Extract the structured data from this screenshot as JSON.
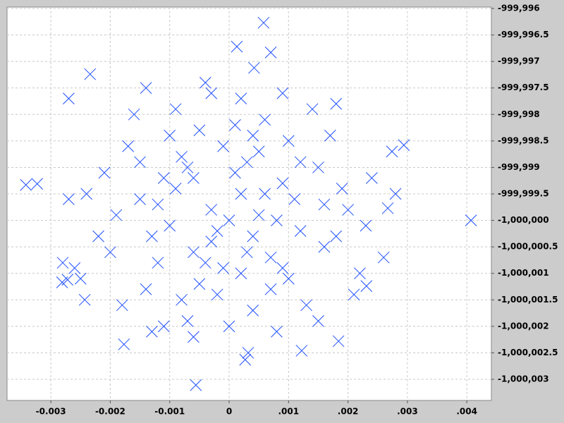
{
  "chart_data": {
    "type": "scatter",
    "color": "#1f4fff",
    "grid": true,
    "marker": "x",
    "xlim": [
      -0.003737,
      0.004413
    ],
    "ylim": [
      -1000003.399,
      -999995.973
    ],
    "xticks": [
      -0.003,
      -0.002,
      -0.001,
      0,
      {
        "value": 0.001,
        "label": ".001"
      },
      {
        "value": 0.002,
        "label": ".002"
      },
      {
        "value": 0.003,
        "label": ".003"
      },
      {
        "value": 0.004,
        "label": ".004"
      }
    ],
    "yticks": [
      {
        "value": -999996,
        "label": "-999,996"
      },
      {
        "value": -999996.5,
        "label": "-999,996.5"
      },
      {
        "value": -999997,
        "label": "-999,997"
      },
      {
        "value": -999997.5,
        "label": "-999,997.5"
      },
      {
        "value": -999998,
        "label": "-999,998"
      },
      {
        "value": -999998.5,
        "label": "-999,998.5"
      },
      {
        "value": -999999,
        "label": "-999,999"
      },
      {
        "value": -999999.5,
        "label": "-999,999.5"
      },
      {
        "value": -1000000,
        "label": "-1,000,000"
      },
      {
        "value": -1000000.5,
        "label": "-1,000,000.5"
      },
      {
        "value": -1000001,
        "label": "-1,000,001"
      },
      {
        "value": -1000001.5,
        "label": "-1,000,001.5"
      },
      {
        "value": -1000002,
        "label": "-1,000,002"
      },
      {
        "value": -1000002.5,
        "label": "-1,000,002.5"
      },
      {
        "value": -1000003,
        "label": "-1,000,003"
      }
    ],
    "x": [
      0.00058,
      0.00013,
      0.0007,
      0.00042,
      -0.00234,
      -0.0027,
      -0.00342,
      -0.00323,
      0.00407,
      -0.00056,
      0.00274,
      0.00294,
      0.00122,
      0.00184,
      0.00027,
      0.00032,
      -0.00177,
      0.00267,
      0.00231,
      -0.00281,
      -0.00272,
      -0.00243,
      -0.0006,
      0.0002,
      -0.001,
      0.0005,
      -0.0003,
      0.0009,
      -0.0015,
      0.0012,
      -0.0008,
      0.0003,
      -0.0001,
      0.0007,
      -0.0012,
      0.0015,
      -0.0019,
      0.0018,
      -0.0005,
      0.0001,
      -0.0002,
      0.001,
      -0.0014,
      0.002,
      -0.0022,
      0.0006,
      -0.0009,
      0.0004,
      -0.0007,
      0.0013,
      -0.0017,
      0.0017,
      -0.0004,
      0.0002,
      -0.0024,
      0.0024,
      -0.0011,
      0.0008,
      -0.0026,
      0.0022,
      -0.0016,
      0.0014,
      0,
      -0.0003,
      0.0004,
      -0.0006,
      0.0006,
      -0.0009,
      0.0011,
      -0.0013,
      0.0001,
      -0.0002,
      0.0003,
      -0.0007,
      0.0008,
      -0.0011,
      0.0016,
      -0.002,
      0.0019,
      -0.0001,
      0.0005,
      -0.0005,
      0.0007,
      -0.0018,
      0.0021,
      -0.0027,
      0.0026,
      -0.0008,
      0.001,
      -0.0015,
      0.0012,
      -0.0004,
      0.0002,
      -0.0012,
      0.0009,
      -0.0021,
      0.0016,
      -0.001,
      0.0004,
      -0.0006,
      0,
      -0.0025,
      0.0023,
      -0.0013,
      0.0015,
      -0.0003,
      0.0009,
      -0.0014,
      0.0018,
      -0.0028,
      0.0028
    ],
    "values": [
      -999996.27,
      -999996.72,
      -999996.83,
      -999997.12,
      -999997.24,
      -999997.7,
      -999999.33,
      -999999.31,
      -1000000,
      -1000003.11,
      -999998.7,
      -999998.58,
      -1000002.46,
      -1000002.28,
      -1000002.63,
      -1000002.5,
      -1000002.34,
      -999999.77,
      -1000001.24,
      -1000001.17,
      -1000001.12,
      -1000001.5,
      -999999.2,
      -999999.5,
      -1000000.1,
      -999999.9,
      -1000000.4,
      -999999.3,
      -999999.6,
      -1000000.2,
      -999998.8,
      -999998.9,
      -1000000.9,
      -1000000.7,
      -1000000.8,
      -999999,
      -999999.9,
      -1000000.3,
      -999998.3,
      -999998.2,
      -1000001.4,
      -1000001.1,
      -1000001.3,
      -999999.8,
      -1000000.3,
      -999998.1,
      -999997.9,
      -1000001.7,
      -1000001.9,
      -1000001.6,
      -999998.6,
      -999998.4,
      -999997.4,
      -999997.7,
      -999999.5,
      -999999.2,
      -1000002,
      -1000002.1,
      -1000000.9,
      -1000001,
      -999998,
      -999997.9,
      -1000000,
      -999999.8,
      -1000000.3,
      -1000000.6,
      -999999.5,
      -999999.4,
      -999999.6,
      -1000000.3,
      -999999.1,
      -1000000.2,
      -1000000.6,
      -999999,
      -1000000,
      -999999.2,
      -1000000.5,
      -1000000.6,
      -999999.4,
      -999998.6,
      -999998.7,
      -1000001.2,
      -1000001.3,
      -1000001.6,
      -1000001.4,
      -999999.6,
      -1000000.7,
      -1000001.5,
      -999998.5,
      -999998.9,
      -999998.9,
      -1000000.8,
      -1000001,
      -999999.7,
      -1000000.9,
      -999999.1,
      -999999.7,
      -999998.4,
      -999998.4,
      -1000002.2,
      -1000002,
      -1000001.1,
      -1000000.1,
      -1000002.1,
      -1000001.9,
      -999997.6,
      -999997.6,
      -999997.5,
      -999997.8,
      -1000000.8,
      -999999.5
    ]
  }
}
